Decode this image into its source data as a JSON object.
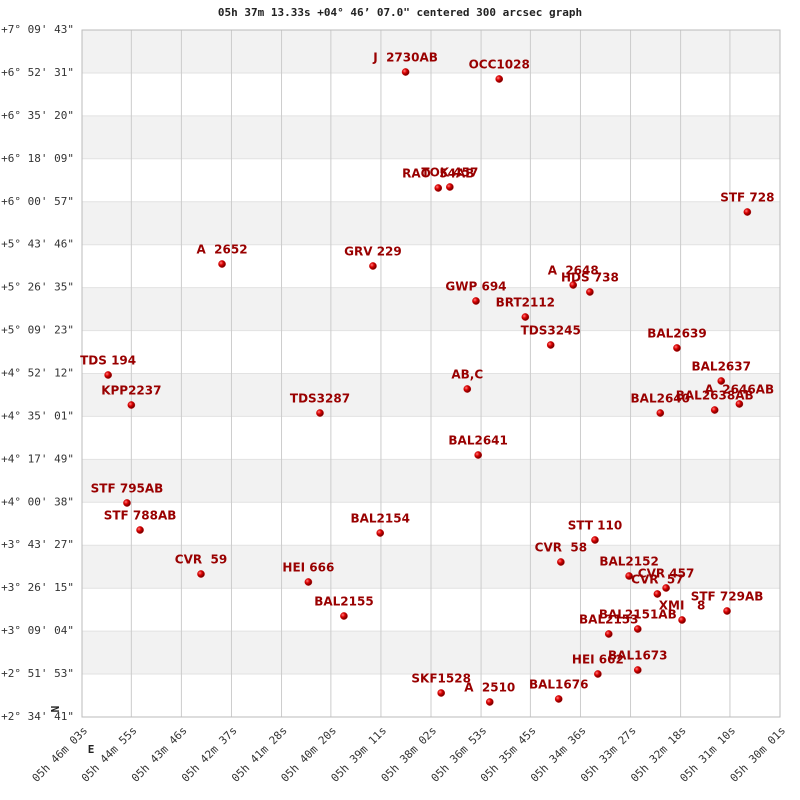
{
  "chart_data": {
    "type": "scatter",
    "title": "05h 37m 13.33s +04° 46’ 07.0\" centered 300 arcsec graph",
    "x_label": "E",
    "y_label": "N",
    "color": "#cc0000",
    "label_color": "#990000",
    "grid": true,
    "xlim": [
      2763,
      1801
    ],
    "ylim": [
      9281,
      25783
    ],
    "xticks": [
      {
        "value": 2763,
        "label": "05h 46m 03s"
      },
      {
        "value": 2695,
        "label": "05h 44m 55s"
      },
      {
        "value": 2626,
        "label": "05h 43m 46s"
      },
      {
        "value": 2557,
        "label": "05h 42m 37s"
      },
      {
        "value": 2488,
        "label": "05h 41m 28s"
      },
      {
        "value": 2420,
        "label": "05h 40m 20s"
      },
      {
        "value": 2351,
        "label": "05h 39m 11s"
      },
      {
        "value": 2282,
        "label": "05h 38m 02s"
      },
      {
        "value": 2213,
        "label": "05h 36m 53s"
      },
      {
        "value": 2145,
        "label": "05h 35m 45s"
      },
      {
        "value": 2076,
        "label": "05h 34m 36s"
      },
      {
        "value": 2007,
        "label": "05h 33m 27s"
      },
      {
        "value": 1938,
        "label": "05h 32m 18s"
      },
      {
        "value": 1870,
        "label": "05h 31m 10s"
      },
      {
        "value": 1801,
        "label": "05h 30m 01s"
      }
    ],
    "yticks": [
      {
        "value": 25783,
        "label": "+7° 09' 43\""
      },
      {
        "value": 24751,
        "label": "+6° 52' 31\""
      },
      {
        "value": 23720,
        "label": "+6° 35' 20\""
      },
      {
        "value": 22689,
        "label": "+6° 18' 09\""
      },
      {
        "value": 21657,
        "label": "+6° 00' 57\""
      },
      {
        "value": 20626,
        "label": "+5° 43' 46\""
      },
      {
        "value": 19595,
        "label": "+5° 26' 35\""
      },
      {
        "value": 18563,
        "label": "+5° 09' 23\""
      },
      {
        "value": 17532,
        "label": "+4° 52' 12\""
      },
      {
        "value": 16501,
        "label": "+4° 35' 01\""
      },
      {
        "value": 15469,
        "label": "+4° 17' 49\""
      },
      {
        "value": 14438,
        "label": "+4° 00' 38\""
      },
      {
        "value": 13407,
        "label": "+3° 43' 27\""
      },
      {
        "value": 12375,
        "label": "+3° 26' 15\""
      },
      {
        "value": 11344,
        "label": "+3° 09' 04\""
      },
      {
        "value": 10313,
        "label": "+2° 51' 53\""
      },
      {
        "value": 9281,
        "label": "+2° 34' 41\""
      }
    ],
    "point_labels": [
      "J  2730AB",
      "OCC1028",
      "RAO  54AB",
      "TOK 457",
      "STF 728",
      "A  2652",
      "GRV 229",
      "A  2648",
      "HDS 738",
      "GWP 694",
      "BRT2112",
      "TDS3245",
      "BAL2639",
      "TDS 194",
      "BAL2637",
      "AB,C",
      "KPP2237",
      "A  2646AB",
      "BAL2638AB",
      "BAL2640",
      "TDS3287",
      "BAL2641",
      "STF 795AB",
      "STF 788AB",
      "BAL2154",
      "STT 110",
      "CVR  58",
      "CVR  59",
      "BAL2152",
      "CVR 457",
      "HEI 666",
      "CVR  57",
      "BAL2155",
      "XMI   8",
      "STF 729AB",
      "BAL2151AB",
      "BAL2153",
      "BAL1673",
      "HEI 662",
      "SKF1528",
      "A  2510",
      "BAL1676"
    ],
    "x": [
      2317,
      2188,
      2272,
      2256,
      1846,
      2570,
      2362,
      2086,
      2063,
      2220,
      2152,
      2117,
      1943,
      2727,
      1882,
      2232,
      2695,
      1857,
      1891,
      1966,
      2435,
      2217,
      2701,
      2683,
      2352,
      2056,
      2103,
      2599,
      2009,
      1958,
      2451,
      1970,
      2402,
      1936,
      1874,
      1997,
      2037,
      1997,
      2052,
      2268,
      2201,
      2106
    ],
    "values": [
      24774,
      24606,
      21988,
      22012,
      21411,
      20162,
      20114,
      19658,
      19490,
      19274,
      18889,
      18217,
      18145,
      17496,
      17352,
      17160,
      16775,
      16800,
      16655,
      16583,
      16583,
      15574,
      14422,
      13773,
      13701,
      13533,
      13004,
      12716,
      12668,
      12380,
      12524,
      12236,
      11707,
      11611,
      11827,
      11395,
      11275,
      10410,
      10314,
      9858,
      9642,
      9714
    ]
  }
}
